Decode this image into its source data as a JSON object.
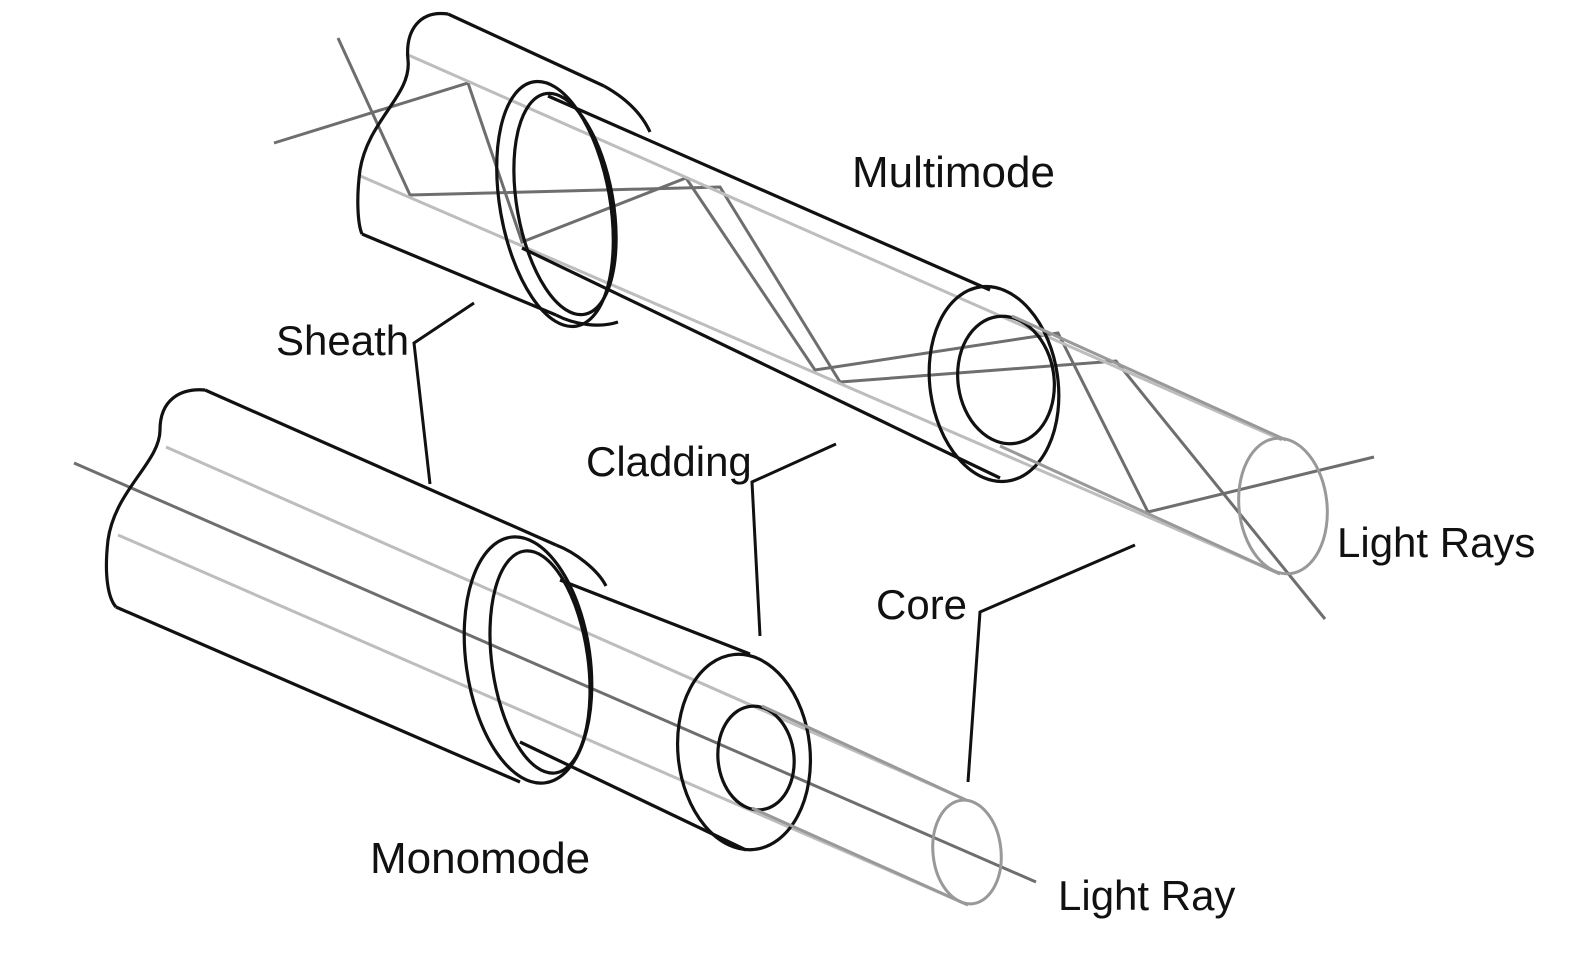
{
  "labels": {
    "multimode": "Multimode",
    "monomode": "Monomode",
    "sheath": "Sheath",
    "cladding": "Cladding",
    "core": "Core",
    "light_rays": "Light Rays",
    "light_ray": "Light Ray"
  },
  "colors": {
    "outline": "#111111",
    "core_outline": "#999999",
    "highlight": "#bdbdbd",
    "ray": "#6e6e6e",
    "background": "#ffffff"
  }
}
